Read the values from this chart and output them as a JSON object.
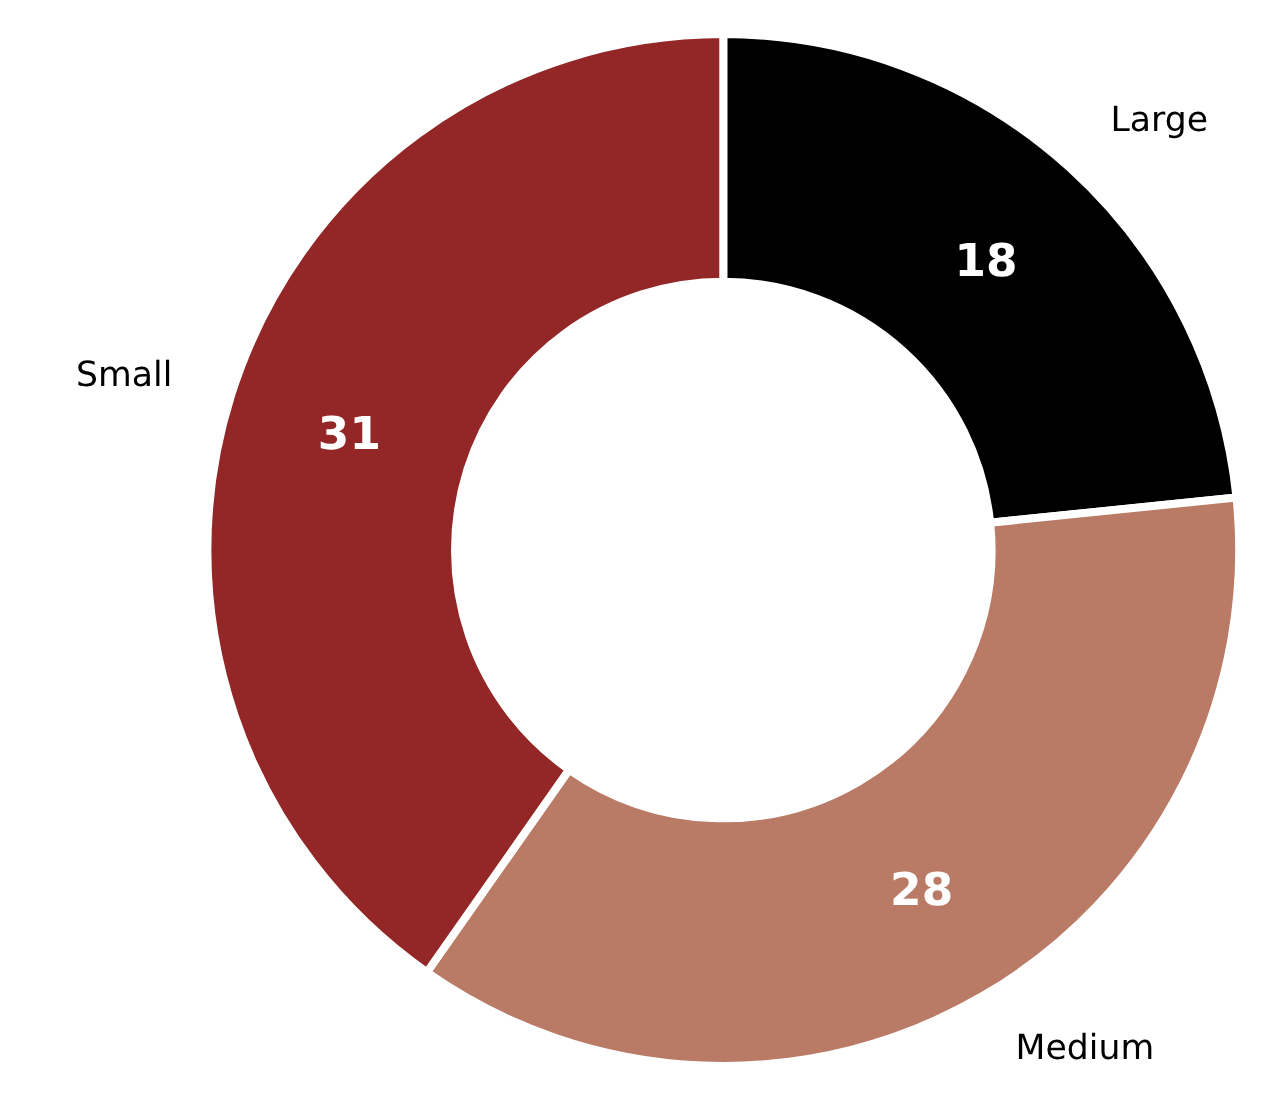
{
  "chart_data": {
    "type": "donut",
    "categories": [
      "Large",
      "Medium",
      "Small"
    ],
    "values": [
      18,
      28,
      31
    ],
    "colors": [
      "#000000",
      "#b97a66",
      "#932626"
    ],
    "data_labels": true
  }
}
